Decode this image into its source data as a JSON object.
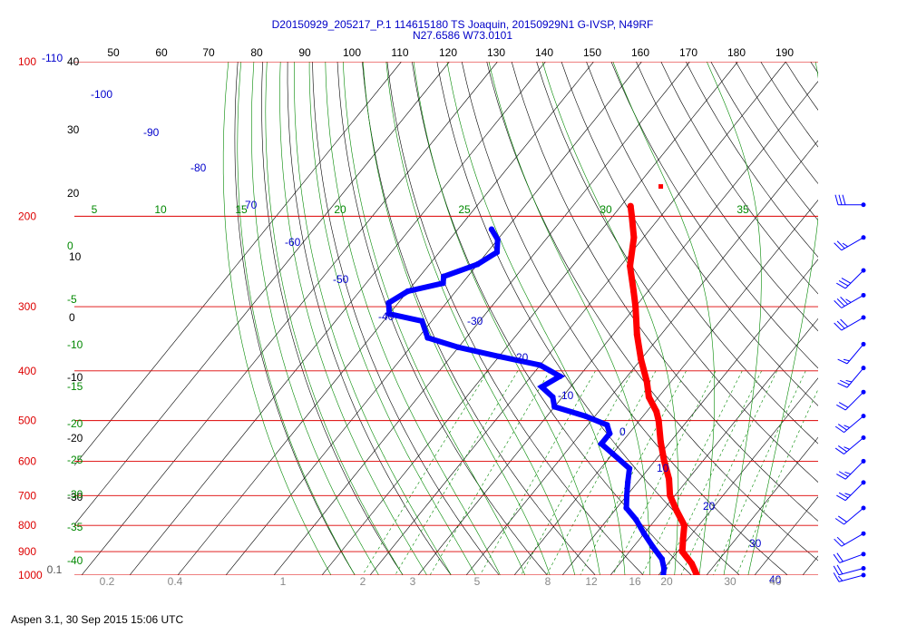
{
  "title": {
    "line1": "D20150929_205217_P.1 114615180 TS Joaquin, 20150929N1 G-IVSP, N49RF",
    "line2": "N27.6586 W73.0101"
  },
  "footer": "Aspen 3.1, 30 Sep 2015  15:06 UTC",
  "colors": {
    "isobar": "#dd0000",
    "isotherm": "#000000",
    "dry_adiabat": "#0000cc",
    "moist_adiabat": "#008800",
    "mixing_ratio": "#008800",
    "temperature_trace": "#ff0000",
    "dewpoint_trace": "#0000ff",
    "wind_barb": "#0000ff"
  },
  "chart_data": {
    "type": "skew-t log-p",
    "pressure_ticks": [
      "100",
      "200",
      "300",
      "400",
      "500",
      "600",
      "700",
      "800",
      "900",
      "1000"
    ],
    "isotherm_labels": [
      "-110",
      "-100",
      "-90",
      "-80",
      "-70",
      "-60",
      "-50",
      "-40",
      "-30",
      "-20",
      "-10",
      "0",
      "10",
      "20",
      "30",
      "40"
    ],
    "left_axis_temp_labels": [
      "40",
      "30",
      "20",
      "10",
      "0",
      "-10",
      "-20",
      "-30"
    ],
    "top_axis_theta_labels": [
      "50",
      "60",
      "70",
      "80",
      "90",
      "100",
      "110",
      "120",
      "130",
      "140",
      "150",
      "160",
      "170",
      "180",
      "190"
    ],
    "moist_adiabat_labels": [
      "5",
      "10",
      "15",
      "20",
      "25",
      "30",
      "35"
    ],
    "left_moist_labels": [
      "0",
      "-5",
      "-10",
      "-15",
      "-20",
      "-25",
      "-30",
      "-35",
      "-40"
    ],
    "mixing_ratio_labels": [
      "0.1",
      "0.2",
      "0.4",
      "1",
      "2",
      "3",
      "5",
      "8",
      "12",
      "16",
      "20",
      "30",
      "40"
    ],
    "temperature_trace": [
      {
        "p": 191,
        "t": -48
      },
      {
        "p": 200,
        "t": -46
      },
      {
        "p": 220,
        "t": -42
      },
      {
        "p": 250,
        "t": -38
      },
      {
        "p": 280,
        "t": -33
      },
      {
        "p": 300,
        "t": -30
      },
      {
        "p": 340,
        "t": -25
      },
      {
        "p": 380,
        "t": -20
      },
      {
        "p": 420,
        "t": -15
      },
      {
        "p": 450,
        "t": -12
      },
      {
        "p": 480,
        "t": -8
      },
      {
        "p": 500,
        "t": -6
      },
      {
        "p": 550,
        "t": -2
      },
      {
        "p": 600,
        "t": 2
      },
      {
        "p": 650,
        "t": 6
      },
      {
        "p": 700,
        "t": 9
      },
      {
        "p": 750,
        "t": 13
      },
      {
        "p": 800,
        "t": 17
      },
      {
        "p": 850,
        "t": 19
      },
      {
        "p": 900,
        "t": 21
      },
      {
        "p": 950,
        "t": 25
      },
      {
        "p": 1000,
        "t": 28
      }
    ],
    "temperature_outlier": {
      "p": 175,
      "t": -45
    },
    "dewpoint_trace": [
      {
        "p": 212,
        "td": -73
      },
      {
        "p": 222,
        "td": -70
      },
      {
        "p": 235,
        "td": -68
      },
      {
        "p": 248,
        "td": -70
      },
      {
        "p": 262,
        "td": -75
      },
      {
        "p": 270,
        "td": -74
      },
      {
        "p": 280,
        "td": -80
      },
      {
        "p": 295,
        "td": -82
      },
      {
        "p": 310,
        "td": -80
      },
      {
        "p": 320,
        "td": -72
      },
      {
        "p": 345,
        "td": -68
      },
      {
        "p": 360,
        "td": -60
      },
      {
        "p": 375,
        "td": -50
      },
      {
        "p": 390,
        "td": -40
      },
      {
        "p": 410,
        "td": -34
      },
      {
        "p": 430,
        "td": -36
      },
      {
        "p": 450,
        "td": -32
      },
      {
        "p": 470,
        "td": -30
      },
      {
        "p": 490,
        "td": -22
      },
      {
        "p": 510,
        "td": -16
      },
      {
        "p": 530,
        "td": -14
      },
      {
        "p": 555,
        "td": -14
      },
      {
        "p": 580,
        "td": -10
      },
      {
        "p": 620,
        "td": -4
      },
      {
        "p": 660,
        "td": -2
      },
      {
        "p": 700,
        "td": 0
      },
      {
        "p": 740,
        "td": 2
      },
      {
        "p": 780,
        "td": 6
      },
      {
        "p": 830,
        "td": 10
      },
      {
        "p": 880,
        "td": 14
      },
      {
        "p": 930,
        "td": 18
      },
      {
        "p": 970,
        "td": 20
      },
      {
        "p": 1000,
        "td": 21
      }
    ],
    "wind_barbs": [
      {
        "p": 190,
        "dir": 270,
        "speed": 30
      },
      {
        "p": 220,
        "dir": 240,
        "speed": 25
      },
      {
        "p": 255,
        "dir": 225,
        "speed": 30
      },
      {
        "p": 285,
        "dir": 240,
        "speed": 35
      },
      {
        "p": 315,
        "dir": 240,
        "speed": 30
      },
      {
        "p": 355,
        "dir": 220,
        "speed": 15
      },
      {
        "p": 395,
        "dir": 220,
        "speed": 25
      },
      {
        "p": 440,
        "dir": 225,
        "speed": 20
      },
      {
        "p": 490,
        "dir": 230,
        "speed": 25
      },
      {
        "p": 540,
        "dir": 230,
        "speed": 25
      },
      {
        "p": 600,
        "dir": 225,
        "speed": 25
      },
      {
        "p": 660,
        "dir": 225,
        "speed": 25
      },
      {
        "p": 740,
        "dir": 230,
        "speed": 20
      },
      {
        "p": 830,
        "dir": 240,
        "speed": 20
      },
      {
        "p": 910,
        "dir": 250,
        "speed": 20
      },
      {
        "p": 970,
        "dir": 255,
        "speed": 20
      },
      {
        "p": 1000,
        "dir": 255,
        "speed": 15
      }
    ],
    "xlabel": "",
    "ylabel": ""
  }
}
